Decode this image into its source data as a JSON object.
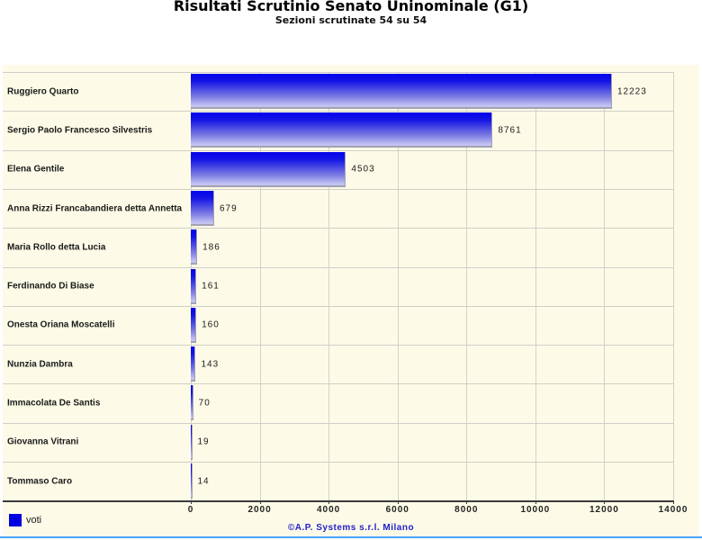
{
  "header": {
    "title": "Risultati Scrutinio Senato Uninominale (G1)",
    "subtitle": "Sezioni scrutinate 54 su 54"
  },
  "chart_data": {
    "type": "bar",
    "orientation": "horizontal",
    "title": "Risultati Scrutinio Senato Uninominale (G1)",
    "subtitle": "Sezioni scrutinate 54 su 54",
    "categories": [
      "Ruggiero Quarto",
      "Sergio Paolo Francesco Silvestris",
      "Elena Gentile",
      "Anna Rizzi Francabandiera detta Annetta",
      "Maria Rollo detta Lucia",
      "Ferdinando Di Biase",
      "Onesta Oriana Moscatelli",
      "Nunzia Dambra",
      "Immacolata De Santis",
      "Giovanna Vitrani",
      "Tommaso Caro"
    ],
    "values": [
      12223,
      8761,
      4503,
      679,
      186,
      161,
      160,
      143,
      70,
      19,
      14
    ],
    "series_label": "voti",
    "x_ticks": [
      0,
      2000,
      4000,
      6000,
      8000,
      10000,
      12000,
      14000
    ],
    "xlim": [
      0,
      14000
    ],
    "grid": true,
    "legend_position": "bottom-left",
    "plot_background": "#fdfbe7",
    "bar_gradient_top": "#0303ec",
    "bar_gradient_bottom": "#c3c3f2"
  },
  "legend": {
    "label": "voti",
    "swatch_color": "#0000e0"
  },
  "footer": {
    "credit": "©A.P. Systems s.r.l. Milano"
  },
  "colors": {
    "accent_line": "#4da3f7",
    "gridline": "#d2d2ca",
    "axis": "#3c3c3c",
    "credit_text": "#2222cc"
  }
}
